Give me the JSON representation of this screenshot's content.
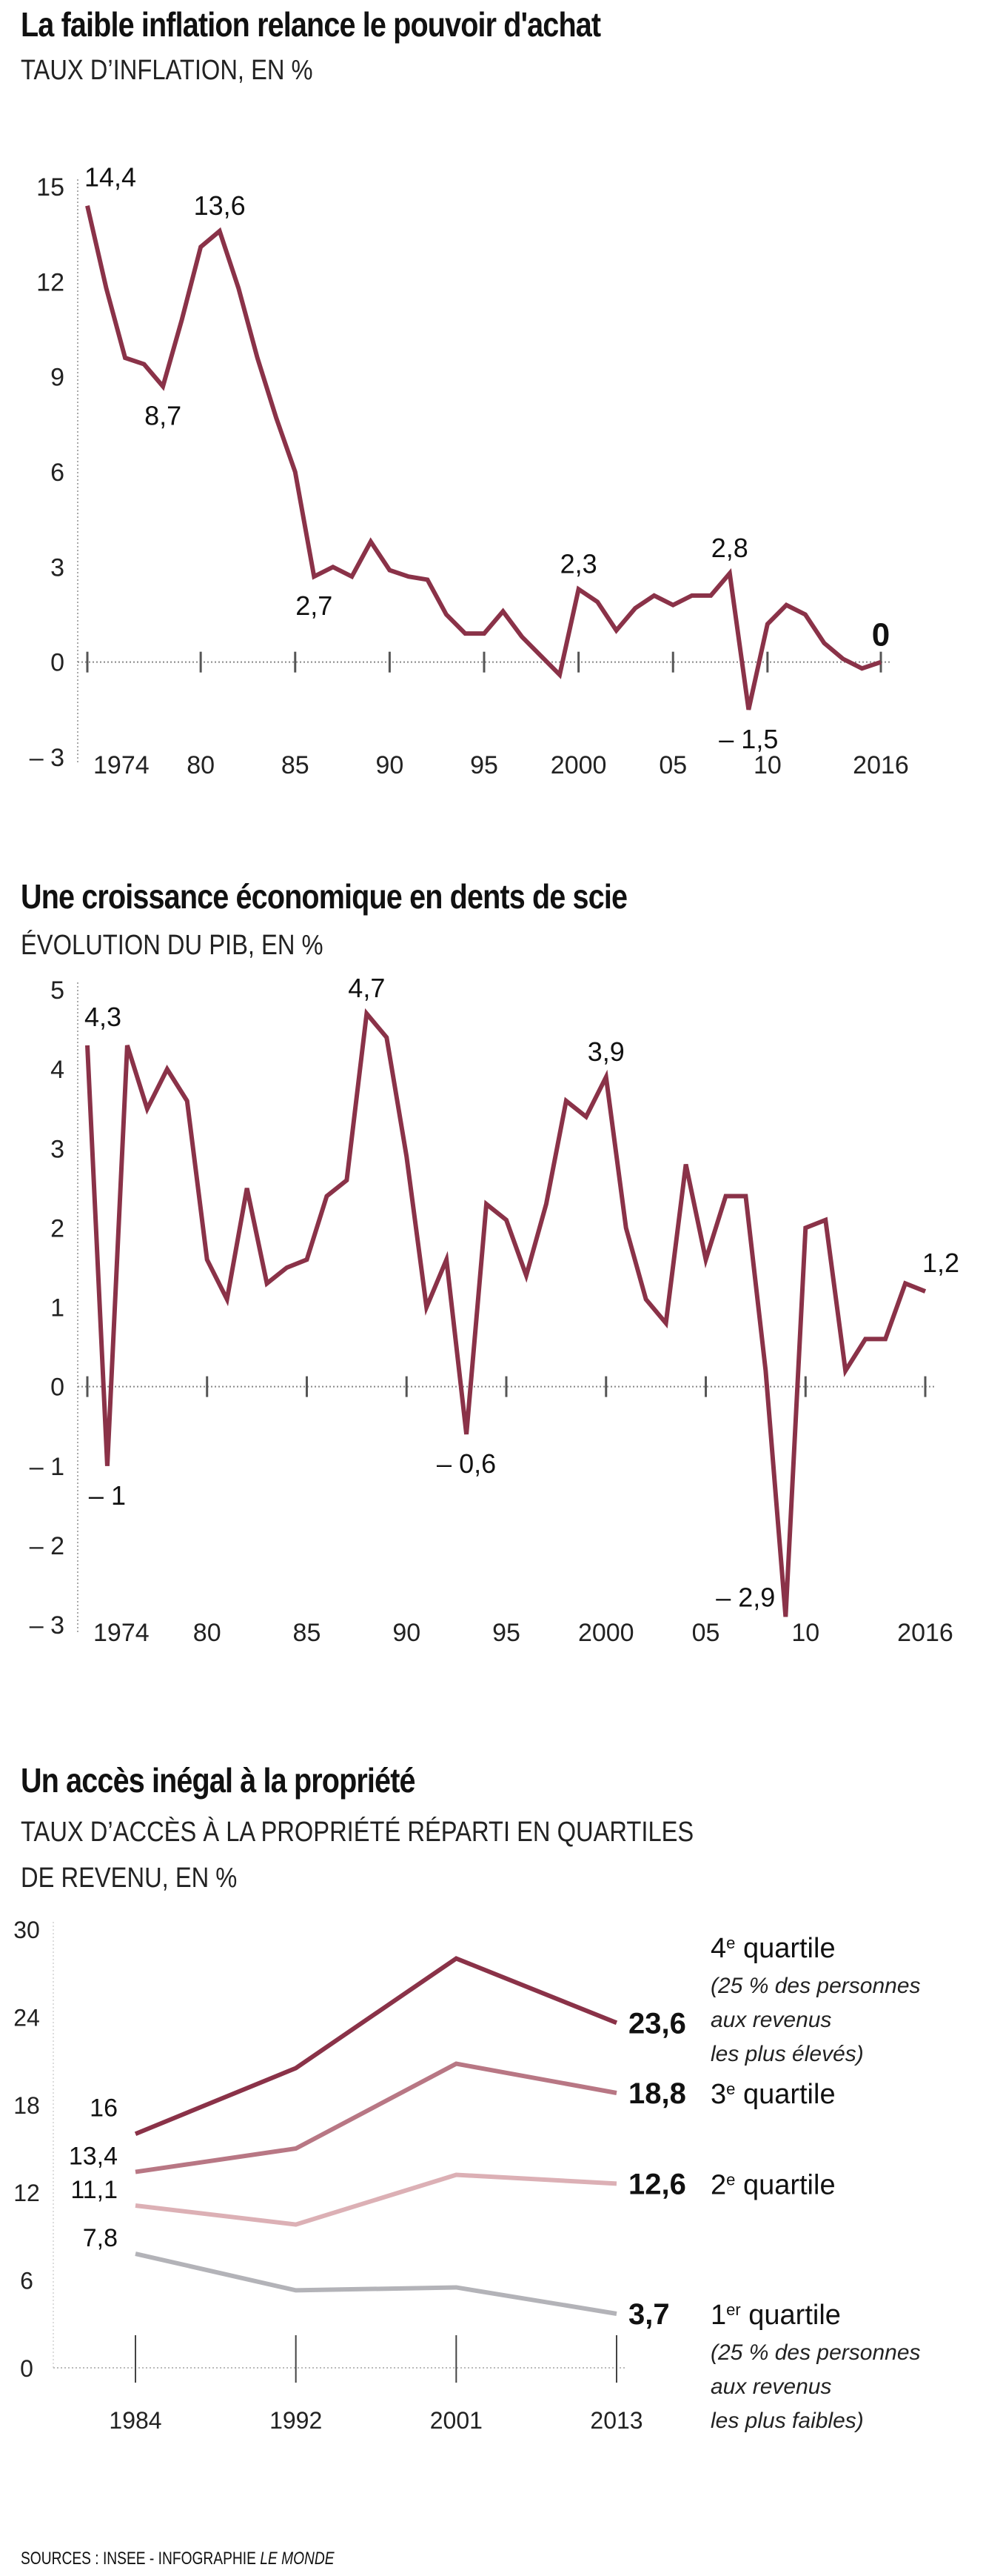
{
  "source": {
    "prefix": "SOURCES : INSEE - INFOGRAPHIE ",
    "brand": "LE MONDE"
  },
  "chart_data": [
    {
      "id": "inflation",
      "type": "line",
      "title": "La faible inflation relance le pouvoir d'achat",
      "subtitle": "TAUX D’INFLATION, EN %",
      "xlabel": "",
      "ylabel": "",
      "x": [
        1974,
        1975,
        1976,
        1977,
        1978,
        1979,
        1980,
        1981,
        1982,
        1983,
        1984,
        1985,
        1986,
        1987,
        1988,
        1989,
        1990,
        1991,
        1992,
        1993,
        1994,
        1995,
        1996,
        1997,
        1998,
        1999,
        2000,
        2001,
        2002,
        2003,
        2004,
        2005,
        2006,
        2007,
        2008,
        2009,
        2010,
        2011,
        2012,
        2013,
        2014,
        2015,
        2016
      ],
      "series": [
        {
          "name": "Taux d'inflation",
          "color": "#8a3248",
          "values": [
            14.4,
            11.8,
            9.6,
            9.4,
            8.7,
            10.8,
            13.1,
            13.6,
            11.8,
            9.6,
            7.7,
            6.0,
            2.7,
            3.0,
            2.7,
            3.8,
            2.9,
            2.7,
            2.6,
            1.5,
            0.9,
            0.9,
            1.6,
            0.8,
            0.2,
            -0.4,
            2.3,
            1.9,
            1.0,
            1.7,
            2.1,
            1.8,
            2.1,
            2.1,
            2.8,
            -1.5,
            1.2,
            1.8,
            1.5,
            0.6,
            0.1,
            -0.2,
            0.0
          ]
        }
      ],
      "ylim": [
        -3,
        15
      ],
      "yticks": [
        15,
        12,
        9,
        6,
        3,
        0,
        -3
      ],
      "ytick_labels": [
        "15",
        "12",
        "9",
        "6",
        "3",
        "0",
        "– 3"
      ],
      "xticks": [
        1974,
        1980,
        1985,
        1990,
        1995,
        2000,
        2005,
        2010,
        2016
      ],
      "xtick_labels": [
        "1974",
        "80",
        "85",
        "90",
        "95",
        "2000",
        "05",
        "10",
        "2016"
      ],
      "annotations": [
        {
          "x": 1974,
          "y": 14.4,
          "text": "14,4",
          "pos": "above-right"
        },
        {
          "x": 1978,
          "y": 8.7,
          "text": "8,7",
          "pos": "below"
        },
        {
          "x": 1981,
          "y": 13.6,
          "text": "13,6",
          "pos": "above"
        },
        {
          "x": 1986,
          "y": 2.7,
          "text": "2,7",
          "pos": "below"
        },
        {
          "x": 2000,
          "y": 2.3,
          "text": "2,3",
          "pos": "above"
        },
        {
          "x": 2008,
          "y": 2.8,
          "text": "2,8",
          "pos": "above"
        },
        {
          "x": 2009,
          "y": -1.5,
          "text": "– 1,5",
          "pos": "below"
        },
        {
          "x": 2016,
          "y": 0.0,
          "text": "0",
          "pos": "above-bold"
        }
      ],
      "grid": false,
      "zero_line": "dotted"
    },
    {
      "id": "gdp",
      "type": "line",
      "title": "Une croissance économique en dents de scie",
      "subtitle": "ÉVOLUTION DU PIB, EN %",
      "xlabel": "",
      "ylabel": "",
      "x": [
        1974,
        1975,
        1976,
        1977,
        1978,
        1979,
        1980,
        1981,
        1982,
        1983,
        1984,
        1985,
        1986,
        1987,
        1988,
        1989,
        1990,
        1991,
        1992,
        1993,
        1994,
        1995,
        1996,
        1997,
        1998,
        1999,
        2000,
        2001,
        2002,
        2003,
        2004,
        2005,
        2006,
        2007,
        2008,
        2009,
        2010,
        2011,
        2012,
        2013,
        2014,
        2015,
        2016
      ],
      "series": [
        {
          "name": "Évolution du PIB",
          "color": "#8a3248",
          "values": [
            4.3,
            -1.0,
            4.3,
            3.5,
            4.0,
            3.6,
            1.6,
            1.1,
            2.5,
            1.3,
            1.5,
            1.6,
            2.4,
            2.6,
            4.7,
            4.4,
            2.9,
            1.0,
            1.6,
            -0.6,
            2.3,
            2.1,
            1.4,
            2.3,
            3.6,
            3.4,
            3.9,
            2.0,
            1.1,
            0.8,
            2.8,
            1.6,
            2.4,
            2.4,
            0.2,
            -2.9,
            2.0,
            2.1,
            0.2,
            0.6,
            0.6,
            1.3,
            1.2
          ]
        }
      ],
      "ylim": [
        -3,
        5
      ],
      "yticks": [
        5,
        4,
        3,
        2,
        1,
        0,
        -1,
        -2,
        -3
      ],
      "ytick_labels": [
        "5",
        "4",
        "3",
        "2",
        "1",
        "0",
        "– 1",
        "– 2",
        "– 3"
      ],
      "xticks": [
        1974,
        1980,
        1985,
        1990,
        1995,
        2000,
        2005,
        2010,
        2016
      ],
      "xtick_labels": [
        "1974",
        "80",
        "85",
        "90",
        "95",
        "2000",
        "05",
        "10",
        "2016"
      ],
      "annotations": [
        {
          "x": 1974,
          "y": 4.3,
          "text": "4,3",
          "pos": "above-right"
        },
        {
          "x": 1975,
          "y": -1.0,
          "text": "– 1",
          "pos": "below"
        },
        {
          "x": 1988,
          "y": 4.7,
          "text": "4,7",
          "pos": "above"
        },
        {
          "x": 1993,
          "y": -0.6,
          "text": "– 0,6",
          "pos": "below"
        },
        {
          "x": 2000,
          "y": 3.9,
          "text": "3,9",
          "pos": "above"
        },
        {
          "x": 2009,
          "y": -2.9,
          "text": "– 2,9",
          "pos": "left"
        },
        {
          "x": 2016,
          "y": 1.2,
          "text": "1,2",
          "pos": "above-right"
        }
      ],
      "grid": false,
      "zero_line": "dotted"
    },
    {
      "id": "property",
      "type": "line",
      "title": "Un accès inégal à la propriété",
      "subtitle_lines": [
        "TAUX D’ACCÈS À LA PROPRIÉTÉ RÉPARTI EN QUARTILES",
        "DE REVENU, EN %"
      ],
      "xlabel": "",
      "ylabel": "",
      "categories": [
        "1984",
        "1992",
        "2001",
        "2013"
      ],
      "series": [
        {
          "name": "4e quartile",
          "ordinal": "4",
          "sup": "e",
          "label": " quartile",
          "note": [
            "(25 % des personnes",
            "aux revenus",
            "les plus élevés)"
          ],
          "color": "#8a3248",
          "values": [
            16.0,
            20.5,
            28.0,
            23.6
          ],
          "start_label": "16",
          "end_label": "23,6"
        },
        {
          "name": "3e quartile",
          "ordinal": "3",
          "sup": "e",
          "label": " quartile",
          "note": [],
          "color": "#b87784",
          "values": [
            13.4,
            15.0,
            20.8,
            18.8
          ],
          "start_label": "13,4",
          "end_label": "18,8"
        },
        {
          "name": "2e quartile",
          "ordinal": "2",
          "sup": "e",
          "label": " quartile",
          "note": [],
          "color": "#dcb0b5",
          "values": [
            11.1,
            9.8,
            13.2,
            12.6
          ],
          "start_label": "11,1",
          "end_label": "12,6"
        },
        {
          "name": "1er quartile",
          "ordinal": "1",
          "sup": "er",
          "label": " quartile",
          "note": [
            "(25 % des personnes",
            "aux revenus",
            "les plus faibles)"
          ],
          "color": "#b3b3b8",
          "values": [
            7.8,
            5.3,
            5.5,
            3.7
          ],
          "start_label": "7,8",
          "end_label": "3,7"
        }
      ],
      "ylim": [
        0,
        30
      ],
      "yticks": [
        30,
        24,
        18,
        12,
        6,
        0
      ],
      "ytick_labels": [
        "30",
        "24",
        "18",
        "12",
        "6",
        "0"
      ],
      "legend": "right",
      "grid": false,
      "zero_line": "dotted"
    }
  ]
}
